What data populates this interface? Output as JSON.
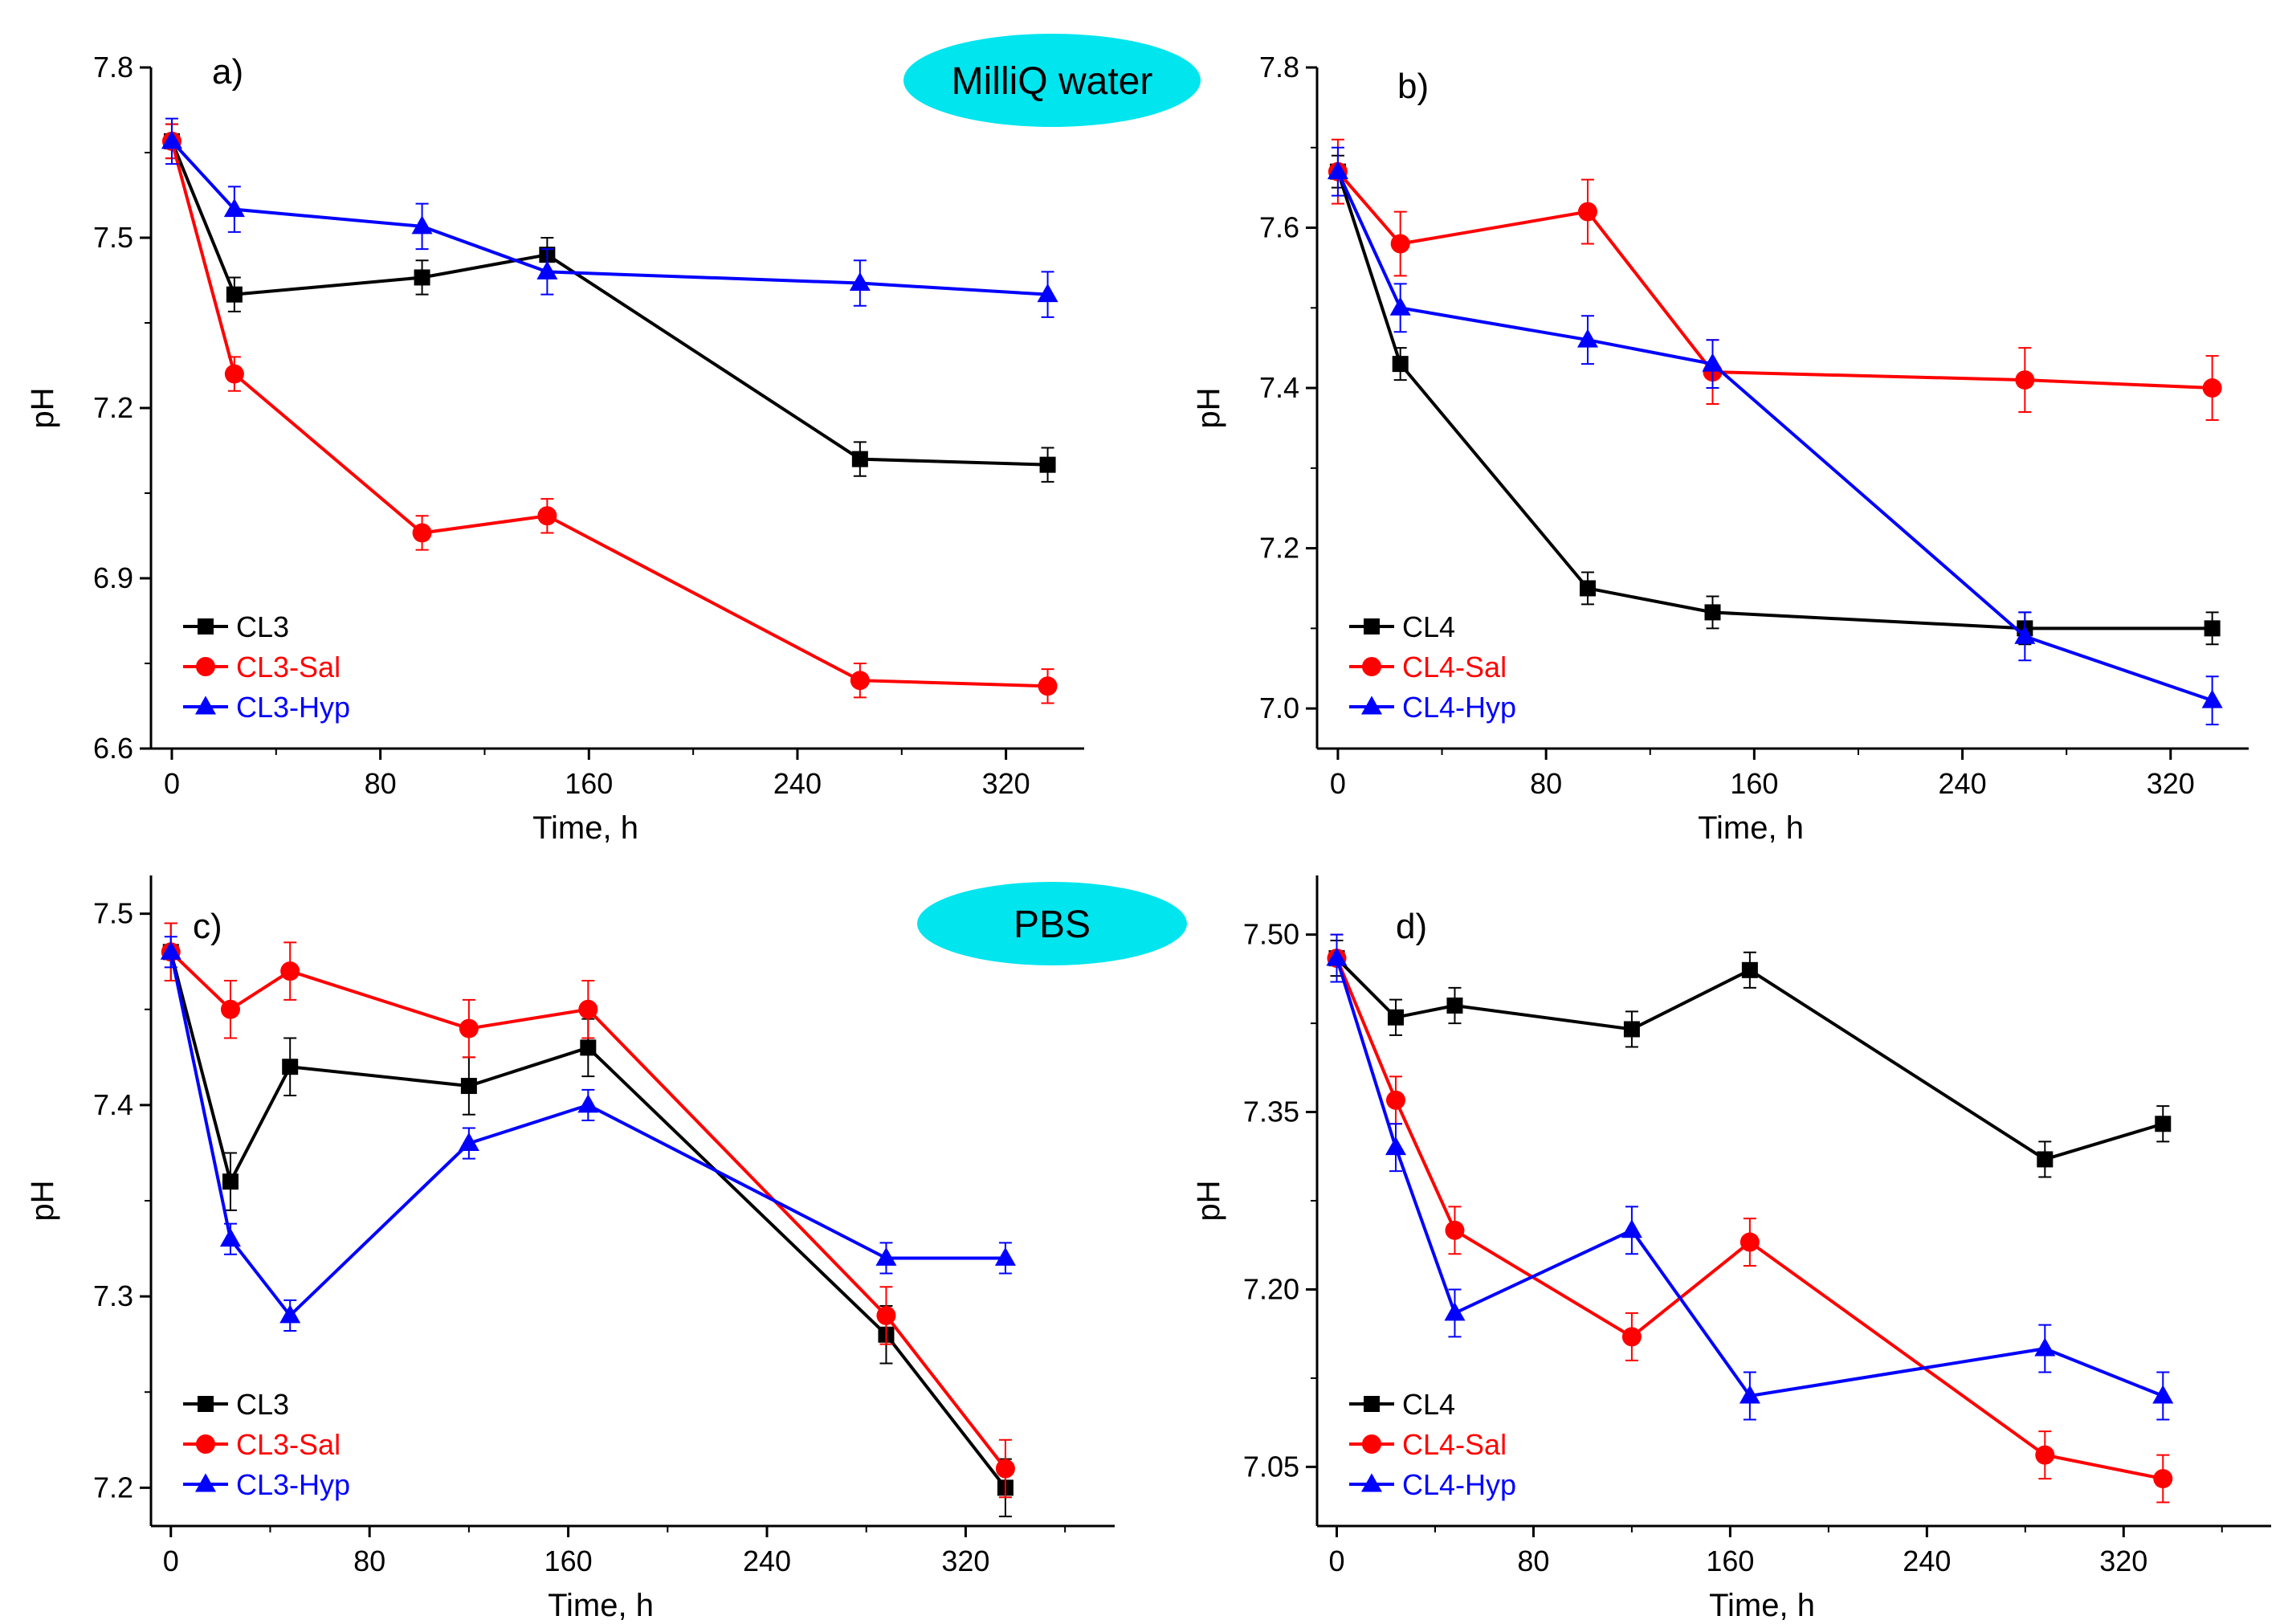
{
  "chart_data": [
    {
      "type": "line",
      "panel": "a)",
      "title": "",
      "badge": "MilliQ water",
      "xlabel": "Time, h",
      "ylabel": "pH",
      "xlim": [
        -8,
        350
      ],
      "ylim": [
        6.6,
        7.8
      ],
      "xticks": [
        0,
        80,
        160,
        240,
        320
      ],
      "yticks": [
        6.6,
        6.9,
        7.2,
        7.5,
        7.8
      ],
      "ytick_decimals": 1,
      "legend_position": "bottom-left",
      "series": [
        {
          "name": "CL3",
          "color": "#000000",
          "marker": "square",
          "x": [
            0,
            24,
            96,
            144,
            264,
            336
          ],
          "y": [
            7.67,
            7.4,
            7.43,
            7.47,
            7.11,
            7.1
          ],
          "err": [
            0.03,
            0.03,
            0.03,
            0.03,
            0.03,
            0.03
          ]
        },
        {
          "name": "CL3-Sal",
          "color": "#ff0000",
          "marker": "circle",
          "x": [
            0,
            24,
            96,
            144,
            264,
            336
          ],
          "y": [
            7.67,
            7.26,
            6.98,
            7.01,
            6.72,
            6.71
          ],
          "err": [
            0.03,
            0.03,
            0.03,
            0.03,
            0.03,
            0.03
          ]
        },
        {
          "name": "CL3-Hyp",
          "color": "#0000ff",
          "marker": "triangle",
          "x": [
            0,
            24,
            96,
            144,
            264,
            336
          ],
          "y": [
            7.67,
            7.55,
            7.52,
            7.44,
            7.42,
            7.4
          ],
          "err": [
            0.04,
            0.04,
            0.04,
            0.04,
            0.04,
            0.04
          ]
        }
      ]
    },
    {
      "type": "line",
      "panel": "b)",
      "title": "",
      "badge": "",
      "xlabel": "Time, h",
      "ylabel": "pH",
      "xlim": [
        -8,
        350
      ],
      "ylim": [
        6.95,
        7.8
      ],
      "xticks": [
        0,
        80,
        160,
        240,
        320
      ],
      "yticks": [
        7.0,
        7.2,
        7.4,
        7.6,
        7.8
      ],
      "ytick_decimals": 1,
      "legend_position": "bottom-left",
      "series": [
        {
          "name": "CL4",
          "color": "#000000",
          "marker": "square",
          "x": [
            0,
            24,
            96,
            144,
            264,
            336
          ],
          "y": [
            7.67,
            7.43,
            7.15,
            7.12,
            7.1,
            7.1
          ],
          "err": [
            0.02,
            0.02,
            0.02,
            0.02,
            0.02,
            0.02
          ]
        },
        {
          "name": "CL4-Sal",
          "color": "#ff0000",
          "marker": "circle",
          "x": [
            0,
            24,
            96,
            144,
            264,
            336
          ],
          "y": [
            7.67,
            7.58,
            7.62,
            7.42,
            7.41,
            7.4
          ],
          "err": [
            0.04,
            0.04,
            0.04,
            0.04,
            0.04,
            0.04
          ]
        },
        {
          "name": "CL4-Hyp",
          "color": "#0000ff",
          "marker": "triangle",
          "x": [
            0,
            24,
            96,
            144,
            264,
            336
          ],
          "y": [
            7.67,
            7.5,
            7.46,
            7.43,
            7.09,
            7.01
          ],
          "err": [
            0.03,
            0.03,
            0.03,
            0.03,
            0.03,
            0.03
          ]
        }
      ]
    },
    {
      "type": "line",
      "panel": "c)",
      "title": "",
      "badge": "PBS",
      "xlabel": "Time, h",
      "ylabel": "pH",
      "xlim": [
        -8,
        380
      ],
      "ylim": [
        7.18,
        7.52
      ],
      "xticks": [
        0,
        80,
        160,
        240,
        320
      ],
      "yticks": [
        7.2,
        7.3,
        7.4,
        7.5
      ],
      "ytick_decimals": 1,
      "legend_position": "bottom-left",
      "series": [
        {
          "name": "CL3",
          "color": "#000000",
          "marker": "square",
          "x": [
            0,
            24,
            48,
            120,
            168,
            288,
            336
          ],
          "y": [
            7.48,
            7.36,
            7.42,
            7.41,
            7.43,
            7.28,
            7.2
          ],
          "err": [
            0.015,
            0.015,
            0.015,
            0.015,
            0.015,
            0.015,
            0.015
          ]
        },
        {
          "name": "CL3-Sal",
          "color": "#ff0000",
          "marker": "circle",
          "x": [
            0,
            24,
            48,
            120,
            168,
            288,
            336
          ],
          "y": [
            7.48,
            7.45,
            7.47,
            7.44,
            7.45,
            7.29,
            7.21
          ],
          "err": [
            0.015,
            0.015,
            0.015,
            0.015,
            0.015,
            0.015,
            0.015
          ]
        },
        {
          "name": "CL3-Hyp",
          "color": "#0000ff",
          "marker": "triangle",
          "x": [
            0,
            24,
            48,
            120,
            168,
            288,
            336
          ],
          "y": [
            7.48,
            7.33,
            7.29,
            7.38,
            7.4,
            7.32,
            7.32
          ],
          "err": [
            0.008,
            0.008,
            0.008,
            0.008,
            0.008,
            0.008,
            0.008
          ]
        }
      ]
    },
    {
      "type": "line",
      "panel": "d)",
      "title": "",
      "badge": "",
      "xlabel": "Time, h",
      "ylabel": "pH",
      "xlim": [
        -8,
        380
      ],
      "ylim": [
        7.0,
        7.55
      ],
      "xticks": [
        0,
        80,
        160,
        240,
        320
      ],
      "yticks": [
        7.05,
        7.2,
        7.35,
        7.5
      ],
      "ytick_decimals": 2,
      "legend_position": "bottom-left",
      "series": [
        {
          "name": "CL4",
          "color": "#000000",
          "marker": "square",
          "x": [
            0,
            24,
            48,
            120,
            168,
            288,
            336
          ],
          "y": [
            7.48,
            7.43,
            7.44,
            7.42,
            7.47,
            7.31,
            7.34
          ],
          "err": [
            0.015,
            0.015,
            0.015,
            0.015,
            0.015,
            0.015,
            0.015
          ]
        },
        {
          "name": "CL4-Sal",
          "color": "#ff0000",
          "marker": "circle",
          "x": [
            0,
            24,
            48,
            120,
            168,
            288,
            336
          ],
          "y": [
            7.48,
            7.36,
            7.25,
            7.16,
            7.24,
            7.06,
            7.04
          ],
          "err": [
            0.02,
            0.02,
            0.02,
            0.02,
            0.02,
            0.02,
            0.02
          ]
        },
        {
          "name": "CL4-Hyp",
          "color": "#0000ff",
          "marker": "triangle",
          "x": [
            0,
            24,
            48,
            120,
            168,
            288,
            336
          ],
          "y": [
            7.48,
            7.32,
            7.18,
            7.25,
            7.11,
            7.15,
            7.11
          ],
          "err": [
            0.02,
            0.02,
            0.02,
            0.02,
            0.02,
            0.02,
            0.02
          ]
        }
      ]
    }
  ]
}
